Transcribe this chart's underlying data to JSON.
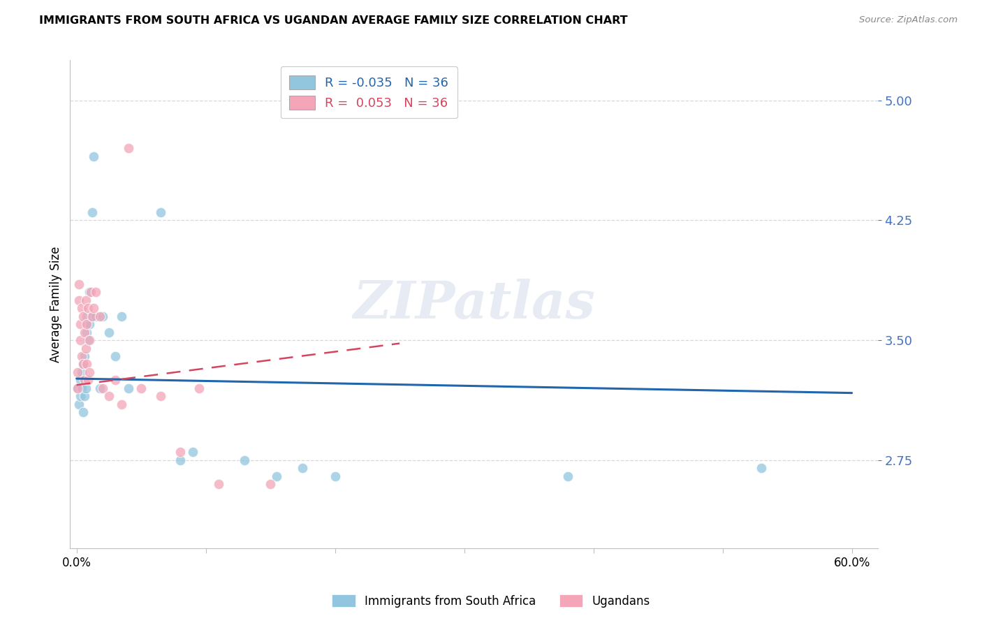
{
  "title": "IMMIGRANTS FROM SOUTH AFRICA VS UGANDAN AVERAGE FAMILY SIZE CORRELATION CHART",
  "source": "Source: ZipAtlas.com",
  "ylabel": "Average Family Size",
  "yticks": [
    2.75,
    3.5,
    4.25,
    5.0
  ],
  "ylim": [
    2.2,
    5.25
  ],
  "xlim": [
    0.0,
    0.6
  ],
  "legend_blue_r": "-0.035",
  "legend_blue_n": "36",
  "legend_pink_r": "0.053",
  "legend_pink_n": "36",
  "blue_color": "#92c5de",
  "pink_color": "#f4a5b8",
  "trendline_blue_color": "#2166ac",
  "trendline_pink_color": "#d6455e",
  "blue_trend_x": [
    0.0,
    0.6
  ],
  "blue_trend_y": [
    3.26,
    3.17
  ],
  "pink_trend_x": [
    0.0,
    0.25
  ],
  "pink_trend_y": [
    3.22,
    3.48
  ],
  "blue_scatter_x": [
    0.001,
    0.002,
    0.003,
    0.003,
    0.004,
    0.004,
    0.005,
    0.005,
    0.006,
    0.006,
    0.007,
    0.007,
    0.008,
    0.008,
    0.009,
    0.01,
    0.01,
    0.011,
    0.012,
    0.013,
    0.015,
    0.018,
    0.02,
    0.025,
    0.03,
    0.035,
    0.04,
    0.065,
    0.08,
    0.09,
    0.13,
    0.155,
    0.175,
    0.2,
    0.38,
    0.53
  ],
  "blue_scatter_y": [
    3.2,
    3.1,
    3.25,
    3.15,
    3.3,
    3.2,
    3.35,
    3.05,
    3.4,
    3.15,
    3.6,
    3.2,
    3.65,
    3.55,
    3.5,
    3.8,
    3.6,
    3.65,
    4.3,
    4.65,
    3.65,
    3.2,
    3.65,
    3.55,
    3.4,
    3.65,
    3.2,
    4.3,
    2.75,
    2.8,
    2.75,
    2.65,
    2.7,
    2.65,
    2.65,
    2.7
  ],
  "pink_scatter_x": [
    0.001,
    0.001,
    0.002,
    0.002,
    0.003,
    0.003,
    0.004,
    0.004,
    0.005,
    0.005,
    0.006,
    0.006,
    0.007,
    0.007,
    0.008,
    0.008,
    0.009,
    0.009,
    0.01,
    0.01,
    0.011,
    0.012,
    0.013,
    0.015,
    0.018,
    0.02,
    0.025,
    0.03,
    0.035,
    0.04,
    0.05,
    0.065,
    0.08,
    0.095,
    0.11,
    0.15
  ],
  "pink_scatter_y": [
    3.2,
    3.3,
    3.85,
    3.75,
    3.6,
    3.5,
    3.7,
    3.4,
    3.65,
    3.35,
    3.25,
    3.55,
    3.75,
    3.45,
    3.6,
    3.35,
    3.7,
    3.25,
    3.5,
    3.3,
    3.8,
    3.65,
    3.7,
    3.8,
    3.65,
    3.2,
    3.15,
    3.25,
    3.1,
    4.7,
    3.2,
    3.15,
    2.8,
    3.2,
    2.6,
    2.6
  ],
  "watermark": "ZIPatlas",
  "grid_color": "#d8d8d8"
}
